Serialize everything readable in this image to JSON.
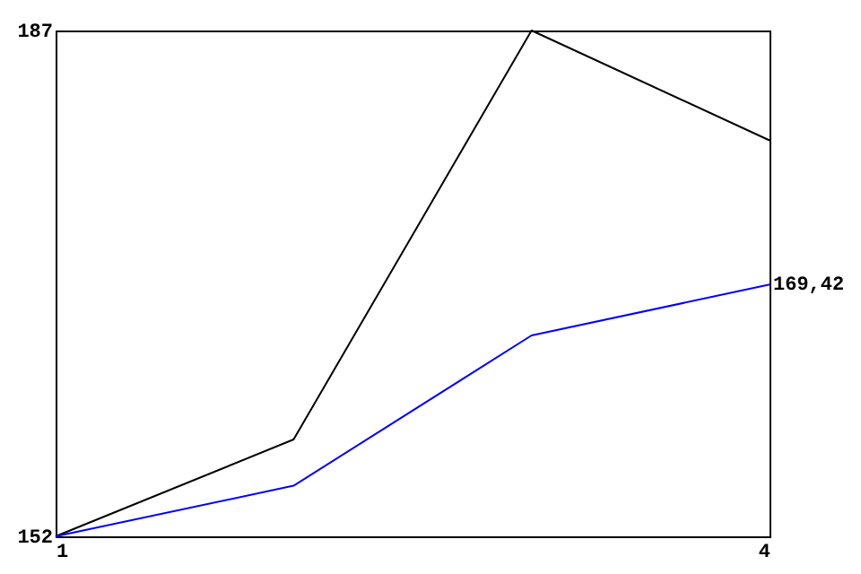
{
  "chart_data": {
    "type": "line",
    "x": [
      1,
      2,
      3,
      4
    ],
    "xlim": [
      1,
      4
    ],
    "xticks": [
      1,
      4
    ],
    "ylim": [
      152,
      187
    ],
    "yticks": [
      152,
      187
    ],
    "grid": false,
    "marker": "none",
    "line_style": "solid",
    "series": [
      {
        "color": "#000000",
        "values": [
          152,
          158.7,
          187,
          179.4
        ]
      },
      {
        "color": "#0000ff",
        "values": [
          152,
          155.5,
          165.9,
          169.42
        ],
        "value_labels": [
          null,
          null,
          null,
          "169,42"
        ]
      }
    ]
  }
}
